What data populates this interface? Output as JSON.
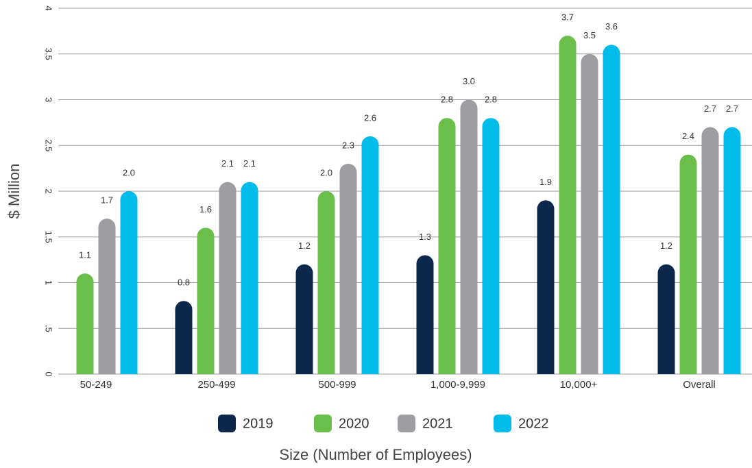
{
  "chart_data": {
    "type": "bar",
    "ylabel": "$ Million",
    "xlabel": "Size (Number of Employees)",
    "categories": [
      "50-249",
      "250-499",
      "500-999",
      "1,000-9,999",
      "10,000+",
      "Overall"
    ],
    "series": [
      {
        "name": "2019",
        "color": "#0d274d",
        "values": [
          null,
          0.8,
          1.2,
          1.3,
          1.9,
          1.2
        ],
        "value_labels": [
          null,
          "0.8",
          "1.2",
          "1.3",
          "1.9",
          "1.2"
        ]
      },
      {
        "name": "2020",
        "color": "#6abf4b",
        "values": [
          1.1,
          1.6,
          2,
          2.8,
          3.7,
          2.4
        ],
        "value_labels": [
          "1.1",
          "1.6",
          "2.0",
          "2.8",
          "3.7",
          "2.4"
        ]
      },
      {
        "name": "2021",
        "color": "#9e9ea2",
        "values": [
          1.7,
          2.1,
          2.3,
          3,
          3.5,
          2.7
        ],
        "value_labels": [
          "1.7",
          "2.1",
          "2.3",
          "3.0",
          "3.5",
          "2.7"
        ]
      },
      {
        "name": "2022",
        "color": "#00bceb",
        "values": [
          2,
          2.1,
          2.6,
          2.8,
          3.6,
          2.7
        ],
        "value_labels": [
          "2.0",
          "2.1",
          "2.6",
          "2.8",
          "3.6",
          "2.7"
        ]
      }
    ],
    "ylim": [
      0,
      4
    ],
    "yticks": [
      0,
      {
        "value": 0.5,
        "label": ".5"
      },
      1,
      1.5,
      2,
      2.5,
      3,
      3.5,
      4
    ],
    "grid": true,
    "legend": "bottom"
  }
}
